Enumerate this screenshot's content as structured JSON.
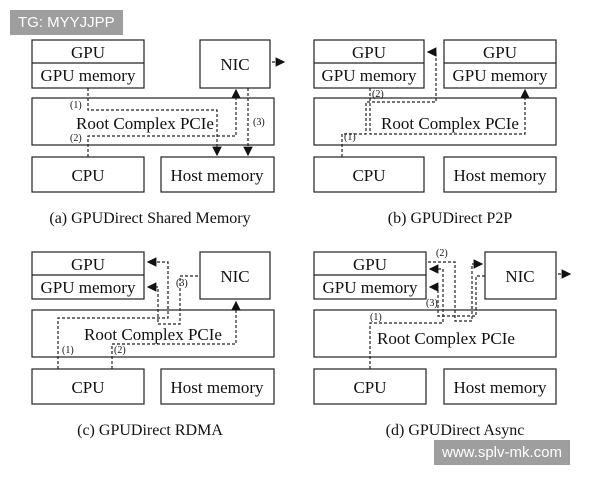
{
  "watermarks": {
    "top": "TG: MYYJJPP",
    "bottom": "www.splv-mk.com"
  },
  "labels": {
    "gpu": "GPU",
    "gpu_memory": "GPU memory",
    "nic": "NIC",
    "root": "Root Complex PCIe",
    "cpu": "CPU",
    "host_memory": "Host memory"
  },
  "steps": {
    "s1": "(1)",
    "s2": "(2)",
    "s3": "(3)"
  },
  "captions": {
    "a": "(a)  GPUDirect Shared Memory",
    "b": "(b)  GPUDirect P2P",
    "c": "(c)  GPUDirect RDMA",
    "d": "(d)  GPUDirect Async"
  }
}
